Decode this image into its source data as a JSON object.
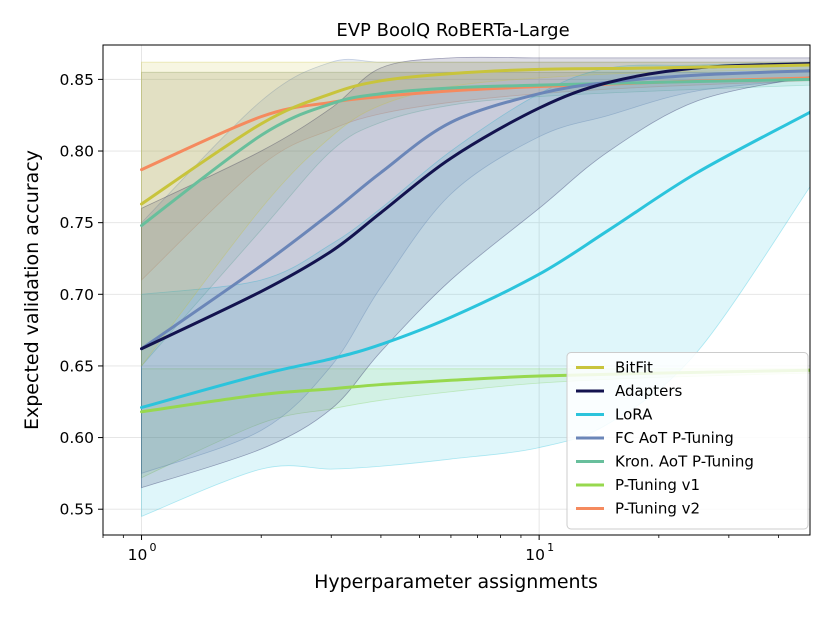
{
  "chart_data": {
    "type": "line",
    "title": "EVP BoolQ RoBERTa-Large",
    "xlabel": "Hyperparameter assignments",
    "ylabel": "Expected validation accuracy",
    "xscale": "log",
    "xlim": [
      0.8,
      48
    ],
    "ylim": [
      0.532,
      0.874
    ],
    "xticks": [
      {
        "value": 1,
        "label": "10",
        "sup": "0"
      },
      {
        "value": 10,
        "label": "10",
        "sup": "1"
      }
    ],
    "yticks": [
      {
        "value": 0.55,
        "label": "0.55"
      },
      {
        "value": 0.6,
        "label": "0.60"
      },
      {
        "value": 0.65,
        "label": "0.65"
      },
      {
        "value": 0.7,
        "label": "0.70"
      },
      {
        "value": 0.75,
        "label": "0.75"
      },
      {
        "value": 0.8,
        "label": "0.80"
      },
      {
        "value": 0.85,
        "label": "0.85"
      }
    ],
    "grid": true,
    "legend_position": "lower-right",
    "series": [
      {
        "name": "BitFit",
        "color": "#c8c43c",
        "x": [
          1,
          2,
          3,
          4,
          6,
          10,
          20,
          48
        ],
        "y": [
          0.763,
          0.819,
          0.84,
          0.849,
          0.854,
          0.857,
          0.858,
          0.86
        ],
        "lower": [
          0.65,
          0.76,
          0.81,
          0.832,
          0.845,
          0.851,
          0.855,
          0.857
        ],
        "upper": [
          0.862,
          0.862,
          0.862,
          0.862,
          0.862,
          0.862,
          0.862,
          0.862
        ]
      },
      {
        "name": "Adapters",
        "color": "#13134f",
        "x": [
          1,
          2,
          3,
          4,
          6,
          10,
          15,
          25,
          48
        ],
        "y": [
          0.662,
          0.702,
          0.73,
          0.757,
          0.795,
          0.83,
          0.848,
          0.858,
          0.861
        ],
        "lower": [
          0.565,
          0.592,
          0.62,
          0.66,
          0.71,
          0.76,
          0.8,
          0.835,
          0.852
        ],
        "upper": [
          0.76,
          0.8,
          0.83,
          0.858,
          0.865,
          0.865,
          0.865,
          0.865,
          0.865
        ]
      },
      {
        "name": "LoRA",
        "color": "#2bc4dc",
        "x": [
          1,
          2,
          3,
          4,
          6,
          10,
          15,
          25,
          48
        ],
        "y": [
          0.621,
          0.644,
          0.655,
          0.665,
          0.684,
          0.714,
          0.745,
          0.785,
          0.827
        ],
        "lower": [
          0.545,
          0.578,
          0.578,
          0.58,
          0.585,
          0.593,
          0.61,
          0.66,
          0.775
        ],
        "upper": [
          0.7,
          0.71,
          0.735,
          0.76,
          0.8,
          0.84,
          0.858,
          0.86,
          0.862
        ]
      },
      {
        "name": "FC AoT P-Tuning",
        "color": "#6b86b8",
        "x": [
          1,
          2,
          3,
          4,
          6,
          10,
          15,
          25,
          48
        ],
        "y": [
          0.662,
          0.72,
          0.757,
          0.785,
          0.82,
          0.84,
          0.848,
          0.853,
          0.856
        ],
        "lower": [
          0.575,
          0.605,
          0.65,
          0.705,
          0.77,
          0.81,
          0.825,
          0.842,
          0.85
        ],
        "upper": [
          0.75,
          0.835,
          0.862,
          0.862,
          0.862,
          0.862,
          0.862,
          0.862,
          0.862
        ]
      },
      {
        "name": "Kron. AoT P-Tuning",
        "color": "#68bf9c",
        "x": [
          1,
          2,
          3,
          4,
          6,
          10,
          20,
          48
        ],
        "y": [
          0.748,
          0.811,
          0.833,
          0.84,
          0.844,
          0.846,
          0.848,
          0.85
        ],
        "lower": [
          0.65,
          0.745,
          0.8,
          0.82,
          0.832,
          0.838,
          0.842,
          0.846
        ],
        "upper": [
          0.855,
          0.855,
          0.855,
          0.855,
          0.855,
          0.855,
          0.855,
          0.855
        ]
      },
      {
        "name": "P-Tuning v1",
        "color": "#97d84e",
        "x": [
          1,
          2,
          3,
          4,
          6,
          10,
          20,
          48
        ],
        "y": [
          0.618,
          0.63,
          0.634,
          0.637,
          0.64,
          0.643,
          0.645,
          0.647
        ],
        "lower": [
          0.572,
          0.61,
          0.62,
          0.626,
          0.632,
          0.638,
          0.642,
          0.645
        ],
        "upper": [
          0.648,
          0.648,
          0.648,
          0.648,
          0.648,
          0.648,
          0.648,
          0.648
        ]
      },
      {
        "name": "P-Tuning v2",
        "color": "#f58a5e",
        "x": [
          1,
          2,
          3,
          4,
          6,
          10,
          20,
          48
        ],
        "y": [
          0.787,
          0.824,
          0.834,
          0.838,
          0.842,
          0.845,
          0.848,
          0.851
        ],
        "lower": [
          0.71,
          0.79,
          0.815,
          0.826,
          0.834,
          0.84,
          0.845,
          0.849
        ],
        "upper": [
          0.855,
          0.855,
          0.855,
          0.855,
          0.855,
          0.855,
          0.855,
          0.855
        ]
      }
    ]
  }
}
